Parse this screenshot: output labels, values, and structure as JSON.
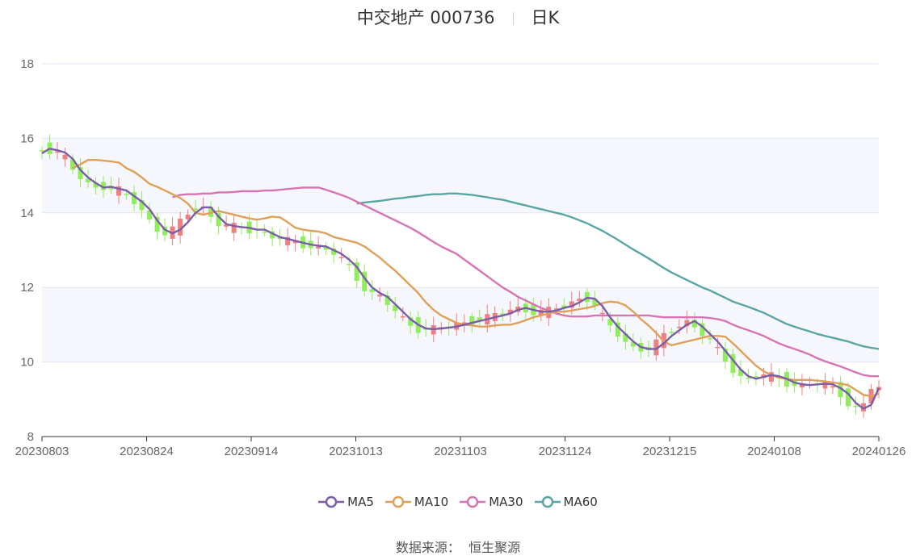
{
  "header": {
    "title_left": "中交地产 000736",
    "title_right": "日K"
  },
  "source": {
    "label": "数据来源：",
    "name": "恒生聚源"
  },
  "chart_data": {
    "type": "candlestick",
    "ylim": [
      8,
      18
    ],
    "yticks": [
      8,
      10,
      12,
      14,
      16,
      18
    ],
    "xtick_labels": [
      "20230803",
      "20230824",
      "20230914",
      "20231013",
      "20231103",
      "20231124",
      "20231215",
      "20240108",
      "20240126"
    ],
    "grid": true,
    "legend_position": "bottom",
    "up_color": "#f08080",
    "down_color": "#90ee5a",
    "series": [
      {
        "name": "MA5",
        "color": "#7b5ea7",
        "values": [
          15.6,
          15.72,
          15.68,
          15.62,
          15.45,
          15.15,
          14.95,
          14.8,
          14.68,
          14.7,
          14.65,
          14.6,
          14.45,
          14.3,
          14.1,
          13.8,
          13.55,
          13.45,
          13.55,
          13.75,
          14.0,
          14.15,
          14.15,
          13.9,
          13.7,
          13.65,
          13.62,
          13.6,
          13.55,
          13.55,
          13.45,
          13.35,
          13.3,
          13.25,
          13.2,
          13.15,
          13.12,
          13.1,
          13.0,
          12.9,
          12.75,
          12.55,
          12.25,
          12.0,
          11.85,
          11.75,
          11.55,
          11.35,
          11.15,
          11.0,
          10.9,
          10.88,
          10.9,
          10.92,
          10.95,
          11.0,
          11.05,
          11.1,
          11.15,
          11.2,
          11.25,
          11.3,
          11.4,
          11.45,
          11.4,
          11.35,
          11.35,
          11.38,
          11.45,
          11.5,
          11.6,
          11.72,
          11.7,
          11.5,
          11.2,
          10.95,
          10.75,
          10.55,
          10.4,
          10.35,
          10.35,
          10.5,
          10.7,
          10.85,
          11.0,
          11.1,
          10.95,
          10.75,
          10.55,
          10.3,
          10.05,
          9.8,
          9.62,
          9.55,
          9.6,
          9.65,
          9.62,
          9.55,
          9.45,
          9.4,
          9.38,
          9.4,
          9.42,
          9.4,
          9.3,
          9.15,
          8.9,
          8.75,
          8.85,
          9.3
        ]
      },
      {
        "name": "MA10",
        "color": "#e0a05a",
        "values": [
          15.2,
          15.3,
          15.42,
          15.42,
          15.4,
          15.38,
          15.35,
          15.2,
          15.1,
          14.95,
          14.78,
          14.7,
          14.6,
          14.5,
          14.4,
          14.25,
          14.0,
          13.95,
          14.0,
          14.05,
          14.0,
          13.95,
          13.9,
          13.85,
          13.82,
          13.85,
          13.9,
          13.88,
          13.75,
          13.6,
          13.55,
          13.52,
          13.5,
          13.45,
          13.35,
          13.3,
          13.25,
          13.2,
          13.1,
          12.95,
          12.8,
          12.62,
          12.45,
          12.25,
          12.05,
          11.85,
          11.6,
          11.4,
          11.25,
          11.15,
          11.05,
          11.0,
          10.98,
          10.95,
          10.95,
          10.98,
          11.0,
          11.0,
          11.05,
          11.12,
          11.2,
          11.25,
          11.3,
          11.35,
          11.35,
          11.38,
          11.42,
          11.45,
          11.5,
          11.58,
          11.62,
          11.6,
          11.52,
          11.35,
          11.15,
          10.98,
          10.78,
          10.55,
          10.45,
          10.5,
          10.55,
          10.6,
          10.65,
          10.7,
          10.7,
          10.68,
          10.5,
          10.3,
          10.1,
          9.9,
          9.75,
          9.65,
          9.58,
          9.55,
          9.52,
          9.52,
          9.52,
          9.5,
          9.48,
          9.45,
          9.42,
          9.38,
          9.25,
          9.12,
          9.08,
          9.15
        ]
      },
      {
        "name": "MA30",
        "color": "#d774b4",
        "values": [
          14.42,
          14.48,
          14.5,
          14.5,
          14.52,
          14.52,
          14.55,
          14.55,
          14.56,
          14.58,
          14.58,
          14.58,
          14.6,
          14.6,
          14.62,
          14.64,
          14.66,
          14.68,
          14.68,
          14.68,
          14.62,
          14.55,
          14.48,
          14.4,
          14.3,
          14.2,
          14.1,
          14.0,
          13.9,
          13.8,
          13.7,
          13.6,
          13.48,
          13.35,
          13.22,
          13.1,
          13.0,
          12.9,
          12.75,
          12.6,
          12.45,
          12.3,
          12.15,
          12.0,
          11.88,
          11.75,
          11.65,
          11.55,
          11.45,
          11.38,
          11.3,
          11.25,
          11.22,
          11.22,
          11.22,
          11.25,
          11.25,
          11.25,
          11.25,
          11.25,
          11.25,
          11.25,
          11.25,
          11.22,
          11.2,
          11.2,
          11.2,
          11.2,
          11.2,
          11.2,
          11.18,
          11.15,
          11.1,
          11.0,
          10.92,
          10.85,
          10.78,
          10.7,
          10.6,
          10.5,
          10.42,
          10.35,
          10.28,
          10.2,
          10.1,
          10.02,
          9.95,
          9.88,
          9.8,
          9.72,
          9.65,
          9.62,
          9.62
        ]
      },
      {
        "name": "MA60",
        "color": "#5aa5a5",
        "values": [
          14.25,
          14.28,
          14.3,
          14.32,
          14.35,
          14.38,
          14.4,
          14.43,
          14.45,
          14.48,
          14.5,
          14.5,
          14.52,
          14.52,
          14.5,
          14.48,
          14.45,
          14.42,
          14.38,
          14.35,
          14.3,
          14.25,
          14.2,
          14.15,
          14.1,
          14.05,
          14.0,
          13.95,
          13.88,
          13.8,
          13.72,
          13.62,
          13.52,
          13.4,
          13.28,
          13.15,
          13.02,
          12.9,
          12.78,
          12.65,
          12.52,
          12.4,
          12.3,
          12.2,
          12.1,
          12.0,
          11.92,
          11.82,
          11.72,
          11.62,
          11.55,
          11.48,
          11.4,
          11.32,
          11.22,
          11.12,
          11.02,
          10.95,
          10.88,
          10.82,
          10.75,
          10.7,
          10.65,
          10.6,
          10.55,
          10.48,
          10.42,
          10.38,
          10.35
        ]
      }
    ]
  }
}
